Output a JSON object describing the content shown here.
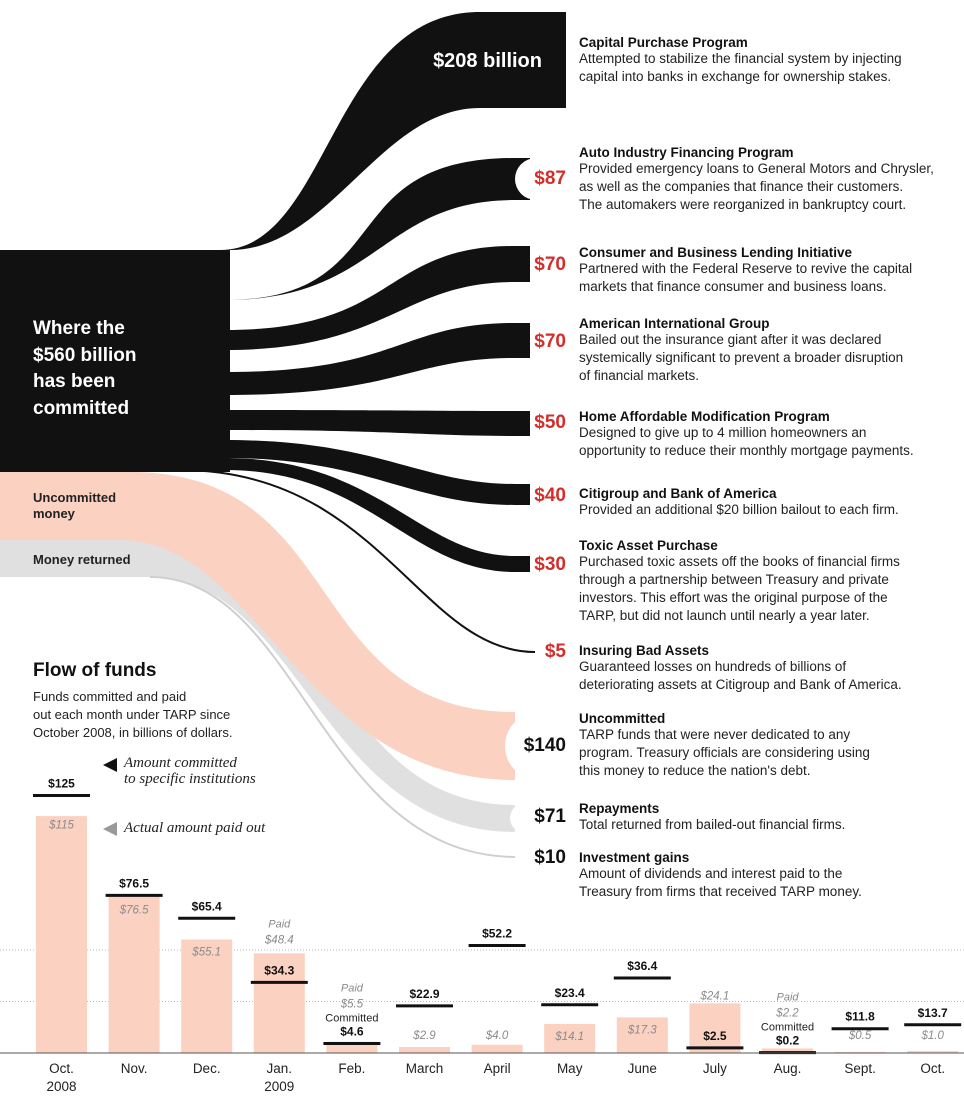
{
  "flow_chart": {
    "headline": [
      "Where the",
      "$560 billion",
      "has been",
      "committed"
    ],
    "uncommitted_label": [
      "Uncommitted",
      "money"
    ],
    "returned_label": "Money returned",
    "programs": [
      {
        "amount": "$208 billion",
        "title": "Capital Purchase Program",
        "desc": [
          "Attempted to stabilize the financial system by injecting",
          "capital into banks in exchange for ownership stakes."
        ]
      },
      {
        "amount": "$87",
        "title": "Auto Industry Financing Program",
        "desc": [
          "Provided emergency loans to General Motors and Chrysler,",
          "as well as the companies that finance their customers.",
          "The automakers were reorganized in bankruptcy court."
        ]
      },
      {
        "amount": "$70",
        "title": "Consumer and Business Lending Initiative",
        "desc": [
          "Partnered with the Federal Reserve to revive the capital",
          "markets that finance consumer and business loans."
        ]
      },
      {
        "amount": "$70",
        "title": "American International Group",
        "desc": [
          "Bailed out the insurance giant after it was declared",
          "systemically significant to prevent a broader disruption",
          "of financial markets."
        ]
      },
      {
        "amount": "$50",
        "title": "Home Affordable Modification Program",
        "desc": [
          "Designed to give up to 4 million homeowners an",
          "opportunity to reduce their monthly mortgage payments."
        ]
      },
      {
        "amount": "$40",
        "title": "Citigroup and Bank of America",
        "desc": [
          "Provided an additional $20 billion bailout to each firm."
        ]
      },
      {
        "amount": "$30",
        "title": "Toxic Asset Purchase",
        "desc": [
          "Purchased toxic assets off the books of financial firms",
          "through a partnership between Treasury and private",
          "investors. This effort was the original purpose of the",
          "TARP, but did not launch until nearly a year later."
        ]
      },
      {
        "amount": "$5",
        "title": "Insuring Bad Assets",
        "desc": [
          "Guaranteed losses on hundreds of billions of",
          "deteriorating assets at Citigroup and Bank of America."
        ]
      },
      {
        "amount": "$140",
        "title": "Uncommitted",
        "desc": [
          "TARP funds that were never dedicated to any",
          "program. Treasury officials are considering using",
          "this money to reduce the nation's debt."
        ]
      },
      {
        "amount": "$71",
        "title": "Repayments",
        "desc": [
          "Total returned from bailed-out financial firms."
        ]
      },
      {
        "amount": "$10",
        "title": "Investment gains",
        "desc": [
          "Amount of dividends and interest paid to the",
          "Treasury from firms that received TARP money."
        ]
      }
    ]
  },
  "flow_of_funds": {
    "title": "Flow of funds",
    "subtitle": [
      "Funds committed and paid",
      "out each month under TARP since",
      "October 2008, in billions of dollars."
    ],
    "legend_committed": [
      "Amount committed",
      "to specific institutions"
    ],
    "legend_paid": "Actual amount paid out"
  },
  "chart_data": {
    "type": "bar",
    "title": "Flow of funds",
    "units": "billions of dollars",
    "categories": [
      [
        "Oct.",
        "2008"
      ],
      [
        "Nov."
      ],
      [
        "Dec."
      ],
      [
        "Jan.",
        "2009"
      ],
      [
        "Feb."
      ],
      [
        "March"
      ],
      [
        "April"
      ],
      [
        "May"
      ],
      [
        "June"
      ],
      [
        "July"
      ],
      [
        "Aug."
      ],
      [
        "Sept."
      ],
      [
        "Oct."
      ]
    ],
    "series": [
      {
        "name": "Amount committed to specific institutions",
        "values": [
          125,
          76.5,
          65.4,
          34.3,
          4.6,
          22.9,
          52.2,
          23.4,
          36.4,
          2.5,
          0.2,
          11.8,
          13.7
        ],
        "labels": [
          "$125",
          "$76.5",
          "$65.4",
          "$34.3",
          "$4.6",
          "$22.9",
          "$52.2",
          "$23.4",
          "$36.4",
          "$2.5",
          "$0.2",
          "$11.8",
          "$13.7"
        ]
      },
      {
        "name": "Actual amount paid out",
        "values": [
          115,
          76.5,
          55.1,
          48.4,
          5.5,
          2.9,
          4.0,
          14.1,
          17.3,
          24.1,
          2.2,
          0.5,
          1.0
        ],
        "labels": [
          "$115",
          "$76.5",
          "$55.1",
          "$48.4",
          "$5.5",
          "$2.9",
          "$4.0",
          "$14.1",
          "$17.3",
          "$24.1",
          "$2.2",
          "$0.5",
          "$1.0"
        ]
      }
    ],
    "annotations": {
      "paid": "Paid",
      "committed": "Committed"
    },
    "grid": true,
    "colors": {
      "paid": "#fbd1c2",
      "committed": "#111111",
      "paid_label": "#8a8a8a",
      "amount_red": "#d42e2a",
      "returned": "#e0e0e0"
    }
  }
}
